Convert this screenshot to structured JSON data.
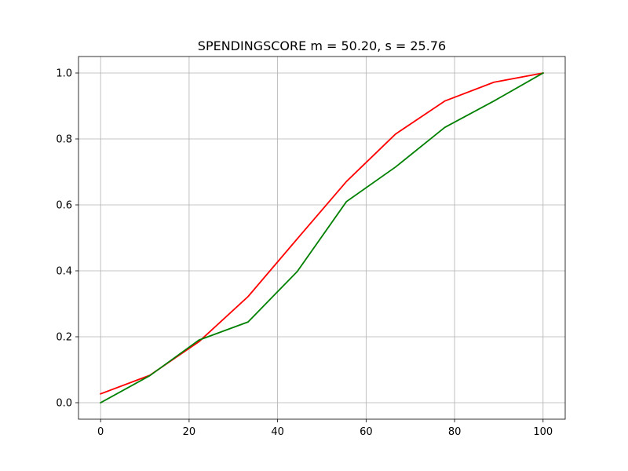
{
  "chart_data": {
    "type": "line",
    "title": "SPENDINGSCORE  m = 50.20,  s = 25.76",
    "xlabel": "",
    "ylabel": "",
    "xlim": [
      -5,
      105
    ],
    "ylim": [
      -0.05,
      1.05
    ],
    "x_ticks": [
      0,
      20,
      40,
      60,
      80,
      100
    ],
    "x_tick_labels": [
      "0",
      "20",
      "40",
      "60",
      "80",
      "100"
    ],
    "y_ticks": [
      0.0,
      0.2,
      0.4,
      0.6,
      0.8,
      1.0
    ],
    "y_tick_labels": [
      "0.0",
      "0.2",
      "0.4",
      "0.6",
      "0.8",
      "1.0"
    ],
    "grid": true,
    "legend": "none",
    "series": [
      {
        "color": "#ff0000",
        "x": [
          0,
          11.11,
          22.22,
          33.33,
          44.44,
          55.56,
          66.67,
          77.78,
          88.89,
          100
        ],
        "y": [
          0.027,
          0.083,
          0.185,
          0.322,
          0.497,
          0.671,
          0.815,
          0.915,
          0.972,
          1.0
        ]
      },
      {
        "color": "#008000",
        "x": [
          0,
          11.11,
          22.22,
          33.33,
          44.44,
          55.56,
          66.67,
          77.78,
          88.89,
          100
        ],
        "y": [
          0.0,
          0.082,
          0.19,
          0.245,
          0.398,
          0.61,
          0.715,
          0.835,
          0.915,
          1.0
        ]
      }
    ]
  }
}
